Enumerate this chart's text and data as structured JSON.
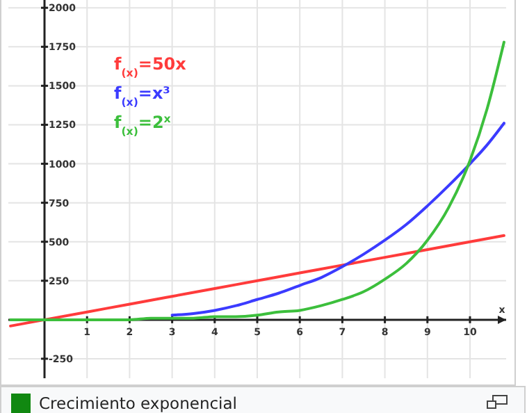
{
  "chart_data": {
    "type": "line",
    "x": [
      -0.8,
      -0.4,
      0,
      0.5,
      1,
      1.5,
      2,
      2.5,
      3,
      3.5,
      4,
      4.5,
      5,
      5.5,
      6,
      6.5,
      7,
      7.5,
      8,
      8.5,
      9,
      9.5,
      10,
      10.4,
      10.8
    ],
    "series": [
      {
        "name": "f$_{(x)}$=50x",
        "color": "#ff3b3b",
        "x": [
          -0.8,
          0,
          1,
          2,
          3,
          4,
          5,
          6,
          7,
          8,
          9,
          10,
          10.8
        ],
        "values": [
          -40,
          0,
          50,
          100,
          150,
          200,
          250,
          300,
          350,
          400,
          450,
          500,
          540
        ]
      },
      {
        "name": "f$_{(x)}$=x³",
        "color": "#3b3bff",
        "x": [
          3,
          3.5,
          4,
          4.5,
          5,
          5.5,
          6,
          6.5,
          7,
          7.5,
          8,
          8.5,
          9,
          9.5,
          10,
          10.4,
          10.8
        ],
        "values": [
          30,
          40,
          60,
          90,
          130,
          170,
          220,
          270,
          340,
          420,
          510,
          610,
          730,
          860,
          1000,
          1120,
          1260
        ]
      },
      {
        "name": "f$_{(x)}$=2$^{x}$",
        "color": "#3cbf3c",
        "values": [
          0,
          0,
          0,
          0,
          0,
          0,
          0,
          10,
          10,
          10,
          20,
          20,
          30,
          50,
          60,
          90,
          130,
          180,
          260,
          360,
          510,
          720,
          1020,
          1350,
          1780
        ]
      }
    ],
    "xlabel": "x",
    "xlim": [
      -0.85,
      10.85
    ],
    "ylim": [
      -375,
      2050
    ],
    "xticks": [
      1,
      2,
      3,
      4,
      5,
      6,
      7,
      8,
      9,
      10
    ],
    "yticks": [
      -250,
      250,
      500,
      750,
      1000,
      1250,
      1500,
      1750,
      2000
    ],
    "grid": true,
    "legend": "top left",
    "marker": "none",
    "line_style": "solid",
    "annotations": [
      "Crecimiento exponencial"
    ]
  }
}
